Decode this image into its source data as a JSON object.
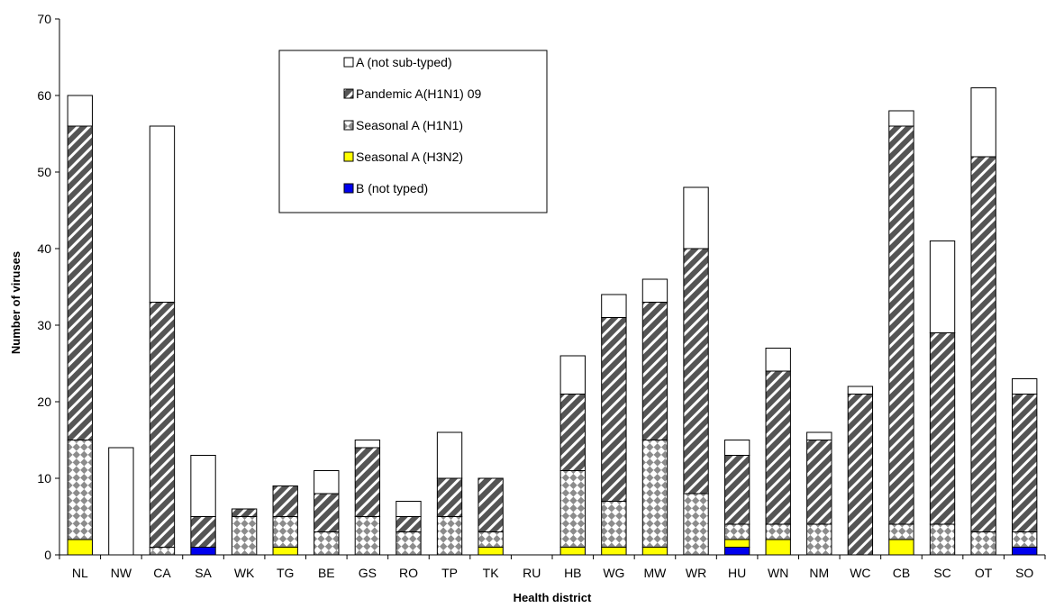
{
  "chart_data": {
    "type": "bar",
    "stacked": true,
    "title": "",
    "xlabel": "Health district",
    "ylabel": "Number of viruses",
    "ylim": [
      0,
      70
    ],
    "yticks": [
      0,
      10,
      20,
      30,
      40,
      50,
      60,
      70
    ],
    "grid": false,
    "legend_position": "top-center",
    "categories": [
      "NL",
      "NW",
      "CA",
      "SA",
      "WK",
      "TG",
      "BE",
      "GS",
      "RO",
      "TP",
      "TK",
      "RU",
      "HB",
      "WG",
      "MW",
      "WR",
      "HU",
      "WN",
      "NM",
      "WC",
      "CB",
      "SC",
      "OT",
      "SO"
    ],
    "series": [
      {
        "name": "B (not typed)",
        "color": "#0000ee",
        "pattern": "solid",
        "values": [
          0,
          0,
          0,
          1,
          0,
          0,
          0,
          0,
          0,
          0,
          0,
          0,
          0,
          0,
          0,
          0,
          1,
          0,
          0,
          0,
          0,
          0,
          0,
          1
        ]
      },
      {
        "name": "Seasonal A (H3N2)",
        "color": "#ffff00",
        "pattern": "solid",
        "values": [
          2,
          0,
          0,
          0,
          0,
          1,
          0,
          0,
          0,
          0,
          1,
          0,
          1,
          1,
          1,
          0,
          1,
          2,
          0,
          0,
          2,
          0,
          0,
          0
        ]
      },
      {
        "name": "Seasonal A (H1N1)",
        "color": "#8c8c8c",
        "pattern": "checker",
        "values": [
          13,
          0,
          1,
          0,
          5,
          4,
          3,
          5,
          3,
          5,
          2,
          0,
          10,
          6,
          14,
          8,
          2,
          2,
          4,
          0,
          2,
          4,
          3,
          2
        ]
      },
      {
        "name": "Pandemic A(H1N1) 09",
        "color": "#555555",
        "pattern": "diagonal",
        "values": [
          41,
          0,
          32,
          4,
          1,
          4,
          5,
          9,
          2,
          5,
          7,
          0,
          10,
          24,
          18,
          32,
          9,
          20,
          11,
          21,
          52,
          25,
          49,
          18
        ]
      },
      {
        "name": "A (not sub-typed)",
        "color": "#ffffff",
        "pattern": "solid",
        "values": [
          4,
          14,
          23,
          8,
          0,
          0,
          3,
          1,
          2,
          6,
          0,
          0,
          5,
          3,
          3,
          8,
          2,
          3,
          1,
          1,
          2,
          12,
          9,
          2
        ]
      }
    ],
    "legend_order": [
      "A (not sub-typed)",
      "Pandemic A(H1N1) 09",
      "Seasonal A (H1N1)",
      "Seasonal A (H3N2)",
      "B (not typed)"
    ]
  }
}
